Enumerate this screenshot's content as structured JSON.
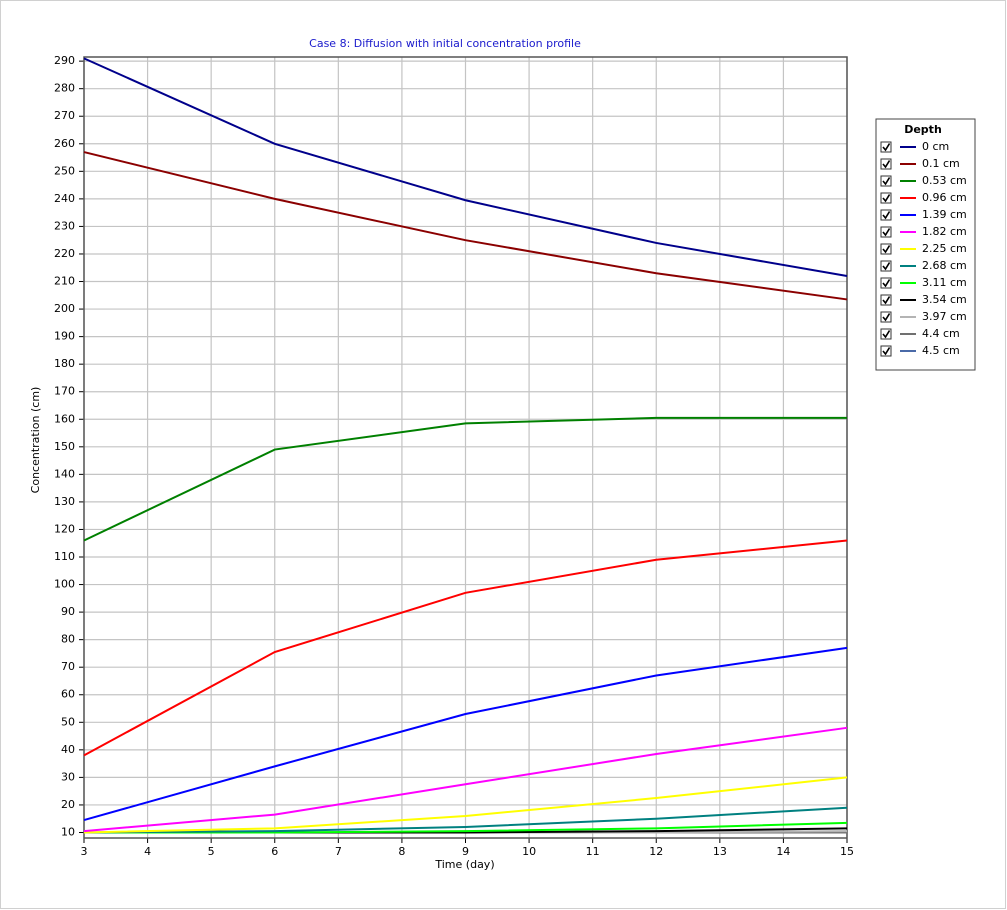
{
  "chart_data": {
    "type": "line",
    "title": "Case 8: Diffusion with initial concentration profile",
    "x_label": "Time (day)",
    "y_label": "Concentration (cm)",
    "x": [
      3,
      6,
      9,
      12,
      15
    ],
    "xlim": [
      3,
      15
    ],
    "xticks": [
      3,
      4,
      5,
      6,
      7,
      8,
      9,
      10,
      11,
      12,
      13,
      14,
      15
    ],
    "ylim": [
      8,
      291.5
    ],
    "yticks": [
      10,
      20,
      30,
      40,
      50,
      60,
      70,
      80,
      90,
      100,
      110,
      120,
      130,
      140,
      150,
      160,
      170,
      180,
      190,
      200,
      210,
      220,
      230,
      240,
      250,
      260,
      270,
      280,
      290
    ],
    "grid": true,
    "legend_title": "Depth",
    "legend_position": "right",
    "series": [
      {
        "name": "0 cm",
        "color": "#00008b",
        "values": [
          291,
          260,
          239.5,
          224,
          212
        ]
      },
      {
        "name": "0.1 cm",
        "color": "#8b0000",
        "values": [
          257,
          240,
          225,
          213,
          203.5
        ]
      },
      {
        "name": "0.53 cm",
        "color": "#008000",
        "values": [
          116,
          149,
          158.5,
          160.5,
          160.5
        ]
      },
      {
        "name": "0.96 cm",
        "color": "#ff0000",
        "values": [
          38,
          75.5,
          97,
          109,
          116
        ]
      },
      {
        "name": "1.39 cm",
        "color": "#0000ff",
        "values": [
          14.5,
          34,
          53,
          67,
          77
        ]
      },
      {
        "name": "1.82 cm",
        "color": "#ff00ff",
        "values": [
          10.5,
          16.5,
          27.5,
          38.5,
          48
        ]
      },
      {
        "name": "2.25 cm",
        "color": "#ffff00",
        "values": [
          10,
          11.5,
          16,
          22.5,
          30
        ]
      },
      {
        "name": "2.68 cm",
        "color": "#008080",
        "values": [
          10,
          10.5,
          12,
          15,
          19
        ]
      },
      {
        "name": "3.11 cm",
        "color": "#00ff00",
        "values": [
          10,
          10,
          10.5,
          11.5,
          13.5
        ]
      },
      {
        "name": "3.54 cm",
        "color": "#000000",
        "values": [
          10,
          10,
          10,
          10.5,
          11.5
        ]
      },
      {
        "name": "3.97 cm",
        "color": "#b4b4b4",
        "values": [
          10,
          10,
          10,
          10,
          10.5
        ]
      },
      {
        "name": "4.4 cm",
        "color": "#707070",
        "values": [
          10,
          10,
          10,
          10,
          10
        ]
      },
      {
        "name": "4.5 cm",
        "color": "#4a6aa8",
        "values": [
          10,
          10,
          10,
          10,
          10
        ]
      }
    ]
  }
}
